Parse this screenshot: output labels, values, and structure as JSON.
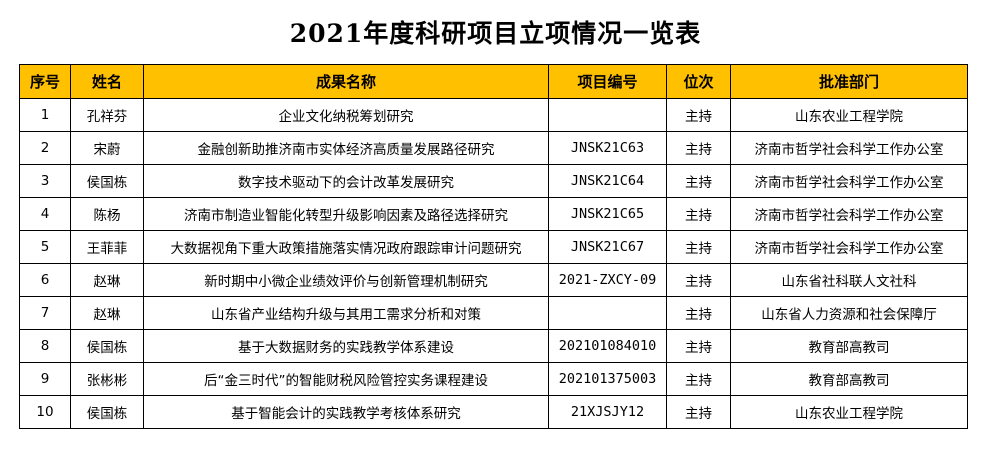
{
  "title": "2021年度科研项目立项情况一览表",
  "table": {
    "headers": [
      "序号",
      "姓名",
      "成果名称",
      "项目编号",
      "位次",
      "批准部门"
    ],
    "rows": [
      [
        "1",
        "孔祥芬",
        "企业文化纳税筹划研究",
        "",
        "主持",
        "山东农业工程学院"
      ],
      [
        "2",
        "宋蔚",
        "金融创新助推济南市实体经济高质量发展路径研究",
        "JNSK21C63",
        "主持",
        "济南市哲学社会科学工作办公室"
      ],
      [
        "3",
        "侯国栋",
        "数字技术驱动下的会计改革发展研究",
        "JNSK21C64",
        "主持",
        "济南市哲学社会科学工作办公室"
      ],
      [
        "4",
        "陈杨",
        "济南市制造业智能化转型升级影响因素及路径选择研究",
        "JNSK21C65",
        "主持",
        "济南市哲学社会科学工作办公室"
      ],
      [
        "5",
        "王菲菲",
        "大数据视角下重大政策措施落实情况政府跟踪审计问题研究",
        "JNSK21C67",
        "主持",
        "济南市哲学社会科学工作办公室"
      ],
      [
        "6",
        "赵琳",
        "新时期中小微企业绩效评价与创新管理机制研究",
        "2021-ZXCY-09",
        "主持",
        "山东省社科联人文社科"
      ],
      [
        "7",
        "赵琳",
        "山东省产业结构升级与其用工需求分析和对策",
        "",
        "主持",
        "山东省人力资源和社会保障厅"
      ],
      [
        "8",
        "侯国栋",
        "基于大数据财务的实践教学体系建设",
        "202101084010",
        "主持",
        "教育部高教司"
      ],
      [
        "9",
        "张彬彬",
        "后“金三时代”的智能财税风险管控实务课程建设",
        "202101375003",
        "主持",
        "教育部高教司"
      ],
      [
        "10",
        "侯国栋",
        "基于智能会计的实践教学考核体系研究",
        "21XJSJY12",
        "主持",
        "山东农业工程学院"
      ]
    ]
  }
}
